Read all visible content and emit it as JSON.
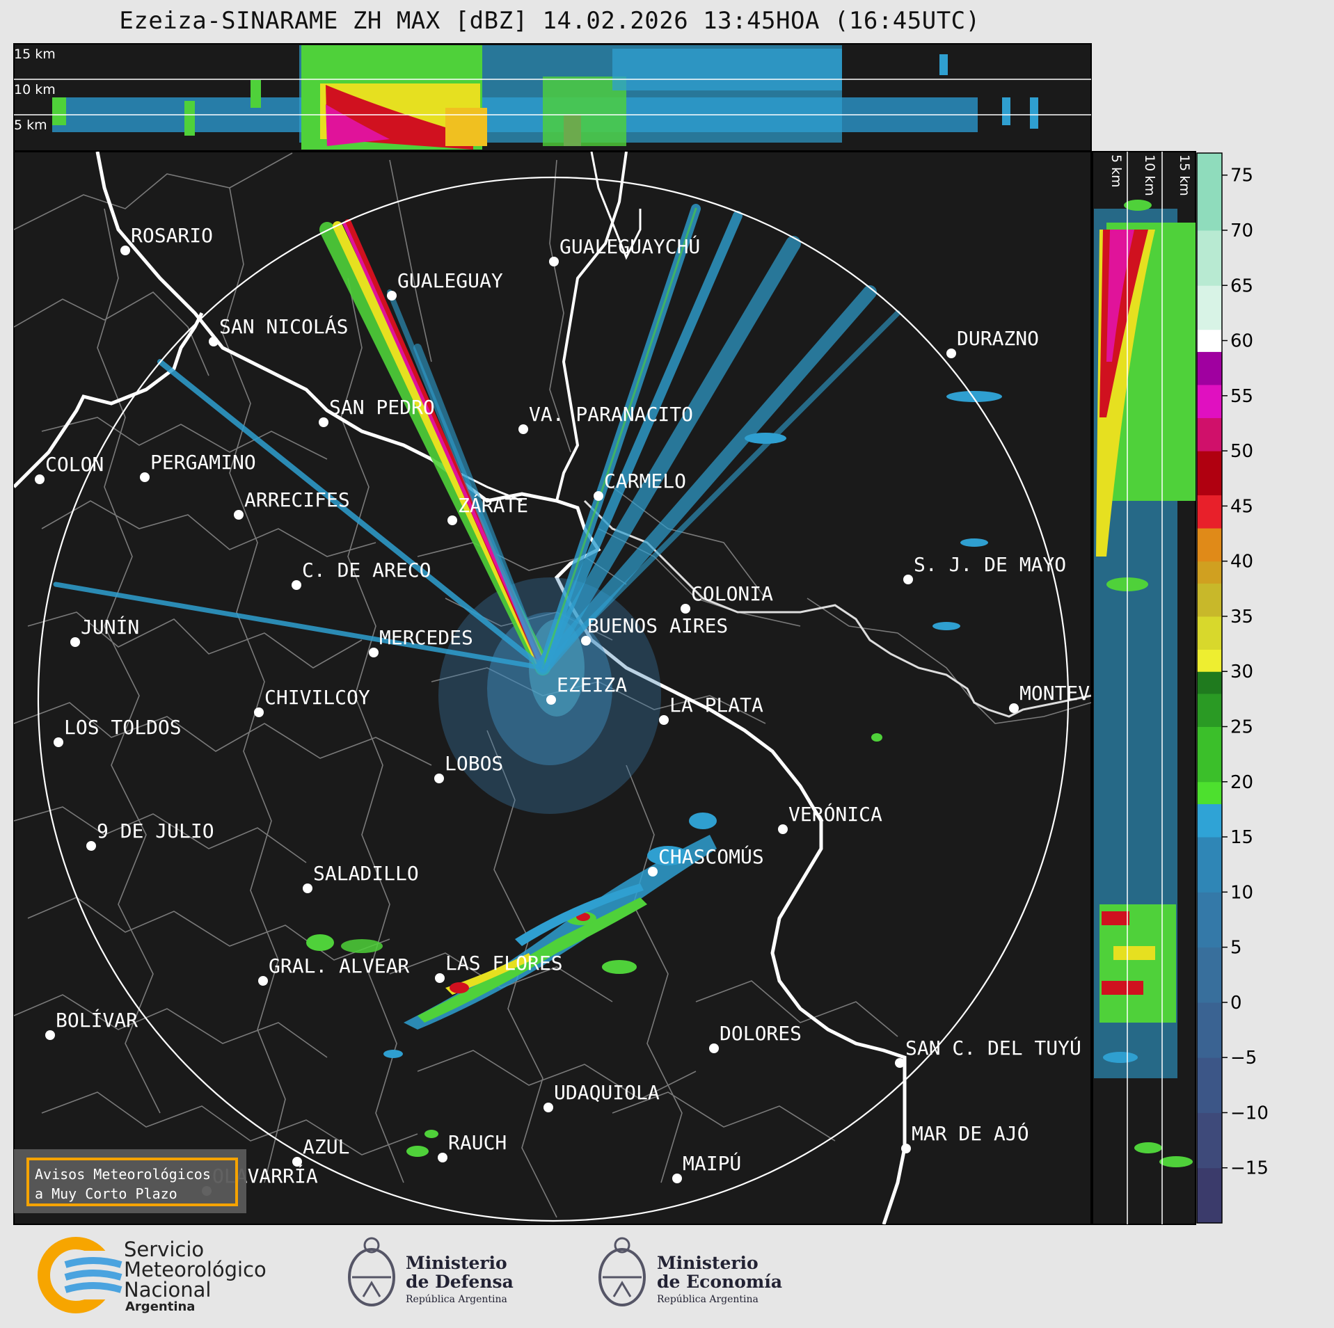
{
  "title": "Ezeiza-SINARAME ZH MAX [dBZ] 14.02.2026 13:45HOA (16:45UTC)",
  "top_panel_heights": [
    "15 km",
    "10 km",
    "5 km"
  ],
  "side_panel_heights": [
    "5 km",
    "10 km",
    "15 km"
  ],
  "colorbar": {
    "ticks": [
      "75",
      "70",
      "65",
      "60",
      "55",
      "50",
      "45",
      "40",
      "35",
      "30",
      "25",
      "20",
      "15",
      "10",
      "5",
      "0",
      "−5",
      "−10",
      "−15"
    ],
    "range_dbz": [
      -20,
      77
    ]
  },
  "cities": [
    {
      "name": "ROSARIO",
      "icon": "city-marker"
    },
    {
      "name": "GUALEGUAYCHÚ",
      "icon": "city-marker"
    },
    {
      "name": "GUALEGUAY",
      "icon": "city-marker"
    },
    {
      "name": "SAN NICOLÁS",
      "icon": "city-marker"
    },
    {
      "name": "DURAZNO",
      "icon": "city-marker"
    },
    {
      "name": "SAN PEDRO",
      "icon": "city-marker"
    },
    {
      "name": "VA. PARANACITO",
      "icon": "city-marker"
    },
    {
      "name": "COLON",
      "icon": "city-marker"
    },
    {
      "name": "PERGAMINO",
      "icon": "city-marker"
    },
    {
      "name": "CARMELO",
      "icon": "city-marker"
    },
    {
      "name": "ARRECIFES",
      "icon": "city-marker"
    },
    {
      "name": "ZÁRATE",
      "icon": "city-marker"
    },
    {
      "name": "S. J. DE MAYO",
      "icon": "city-marker"
    },
    {
      "name": "C. DE ARECO",
      "icon": "city-marker"
    },
    {
      "name": "COLONIA",
      "icon": "city-marker"
    },
    {
      "name": "JUNÍN",
      "icon": "city-marker"
    },
    {
      "name": "BUENOS AIRES",
      "icon": "city-marker"
    },
    {
      "name": "MERCEDES",
      "icon": "city-marker"
    },
    {
      "name": "EZEIZA",
      "icon": "radar-site-marker"
    },
    {
      "name": "MONTEV",
      "icon": "city-marker"
    },
    {
      "name": "CHIVILCOY",
      "icon": "city-marker"
    },
    {
      "name": "LA PLATA",
      "icon": "city-marker"
    },
    {
      "name": "LOS TOLDOS",
      "icon": "city-marker"
    },
    {
      "name": "LOBOS",
      "icon": "city-marker"
    },
    {
      "name": "VERÓNICA",
      "icon": "city-marker"
    },
    {
      "name": "9 DE JULIO",
      "icon": "city-marker"
    },
    {
      "name": "CHASCOMÚS",
      "icon": "city-marker"
    },
    {
      "name": "SALADILLO",
      "icon": "city-marker"
    },
    {
      "name": "GRAL. ALVEAR",
      "icon": "city-marker"
    },
    {
      "name": "LAS FLORES",
      "icon": "city-marker"
    },
    {
      "name": "BOLÍVAR",
      "icon": "city-marker"
    },
    {
      "name": "DOLORES",
      "icon": "city-marker"
    },
    {
      "name": "SAN C. DEL TUYÚ",
      "icon": "city-marker"
    },
    {
      "name": "UDAQUIOLA",
      "icon": "city-marker"
    },
    {
      "name": "MAR DE AJÓ",
      "icon": "city-marker"
    },
    {
      "name": "AZUL",
      "icon": "city-marker"
    },
    {
      "name": "RAUCH",
      "icon": "city-marker"
    },
    {
      "name": "OLAVARRÍA",
      "icon": "city-marker"
    },
    {
      "name": "MAIPÚ",
      "icon": "city-marker"
    }
  ],
  "warning_label": {
    "line1": "Avisos Meteorológicos",
    "line2": "a Muy Corto Plazo"
  },
  "footer": {
    "smn": {
      "line1": "Servicio",
      "line2": "Meteorológico",
      "line3": "Nacional",
      "country": "Argentina"
    },
    "defensa": {
      "line1": "Ministerio",
      "line2": "de Defensa",
      "sub": "República Argentina"
    },
    "economia": {
      "line1": "Ministerio",
      "line2": "de Economía",
      "sub": "República Argentina"
    }
  },
  "colors": {
    "panel_bg": "#1a1a1a",
    "coast": "#ffffff",
    "borders": "#7a7a7a",
    "warning_border": "#f5a300"
  }
}
